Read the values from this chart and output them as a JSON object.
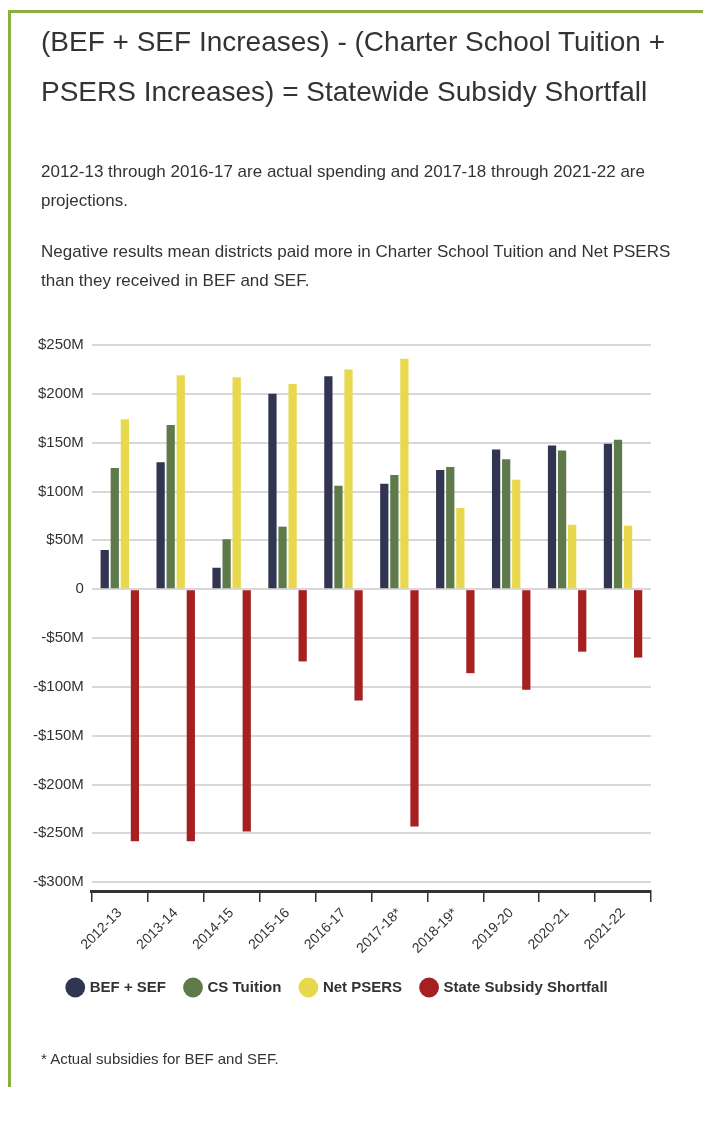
{
  "chart_data": {
    "type": "bar",
    "title": "(BEF + SEF Increases) - (Charter School Tuition + PSERS Increases) = Statewide Subsidy Shortfall",
    "subtitle": "2012-13 through 2016-17 are actual spending and 2017-18 through 2021-22 are projections.",
    "annotations": [
      "Negative results mean districts paid more in Charter School Tuition and Net PSERS than they received in BEF and SEF.",
      "* Actual subsidies for BEF and SEF."
    ],
    "categories": [
      "2012-13",
      "2013-14",
      "2014-15",
      "2015-16",
      "2016-17",
      "2017-18*",
      "2018-19*",
      "2019-20",
      "2020-21",
      "2021-22"
    ],
    "series": [
      {
        "name": "BEF + SEF",
        "color": "#323552",
        "values": [
          40,
          130,
          22,
          200,
          218,
          108,
          122,
          143,
          147,
          149
        ]
      },
      {
        "name": "CS Tuition",
        "color": "#5f7a4a",
        "values": [
          124,
          168,
          51,
          64,
          106,
          117,
          125,
          133,
          142,
          153
        ]
      },
      {
        "name": "Net PSERS",
        "color": "#e8d84e",
        "values": [
          174,
          219,
          217,
          210,
          225,
          236,
          83,
          112,
          66,
          65
        ]
      },
      {
        "name": "State Subsidy Shortfall",
        "color": "#a62022",
        "values": [
          -258,
          -258,
          -248,
          -74,
          -114,
          -243,
          -86,
          -103,
          -64,
          -70
        ]
      }
    ],
    "ylim": [
      -310,
      250
    ],
    "yticks": [
      {
        "value": 250,
        "label": "$250M"
      },
      {
        "value": 200,
        "label": "$200M"
      },
      {
        "value": 150,
        "label": "$150M"
      },
      {
        "value": 100,
        "label": "$100M"
      },
      {
        "value": 50,
        "label": "$50M"
      },
      0,
      {
        "value": -50,
        "label": "-$50M"
      },
      {
        "value": -100,
        "label": "-$100M"
      },
      {
        "value": -150,
        "label": "-$150M"
      },
      {
        "value": -200,
        "label": "-$200M"
      },
      {
        "value": -250,
        "label": "-$250M"
      },
      {
        "value": -300,
        "label": "-$300M"
      }
    ],
    "grid": "y",
    "legend": "bottom"
  }
}
